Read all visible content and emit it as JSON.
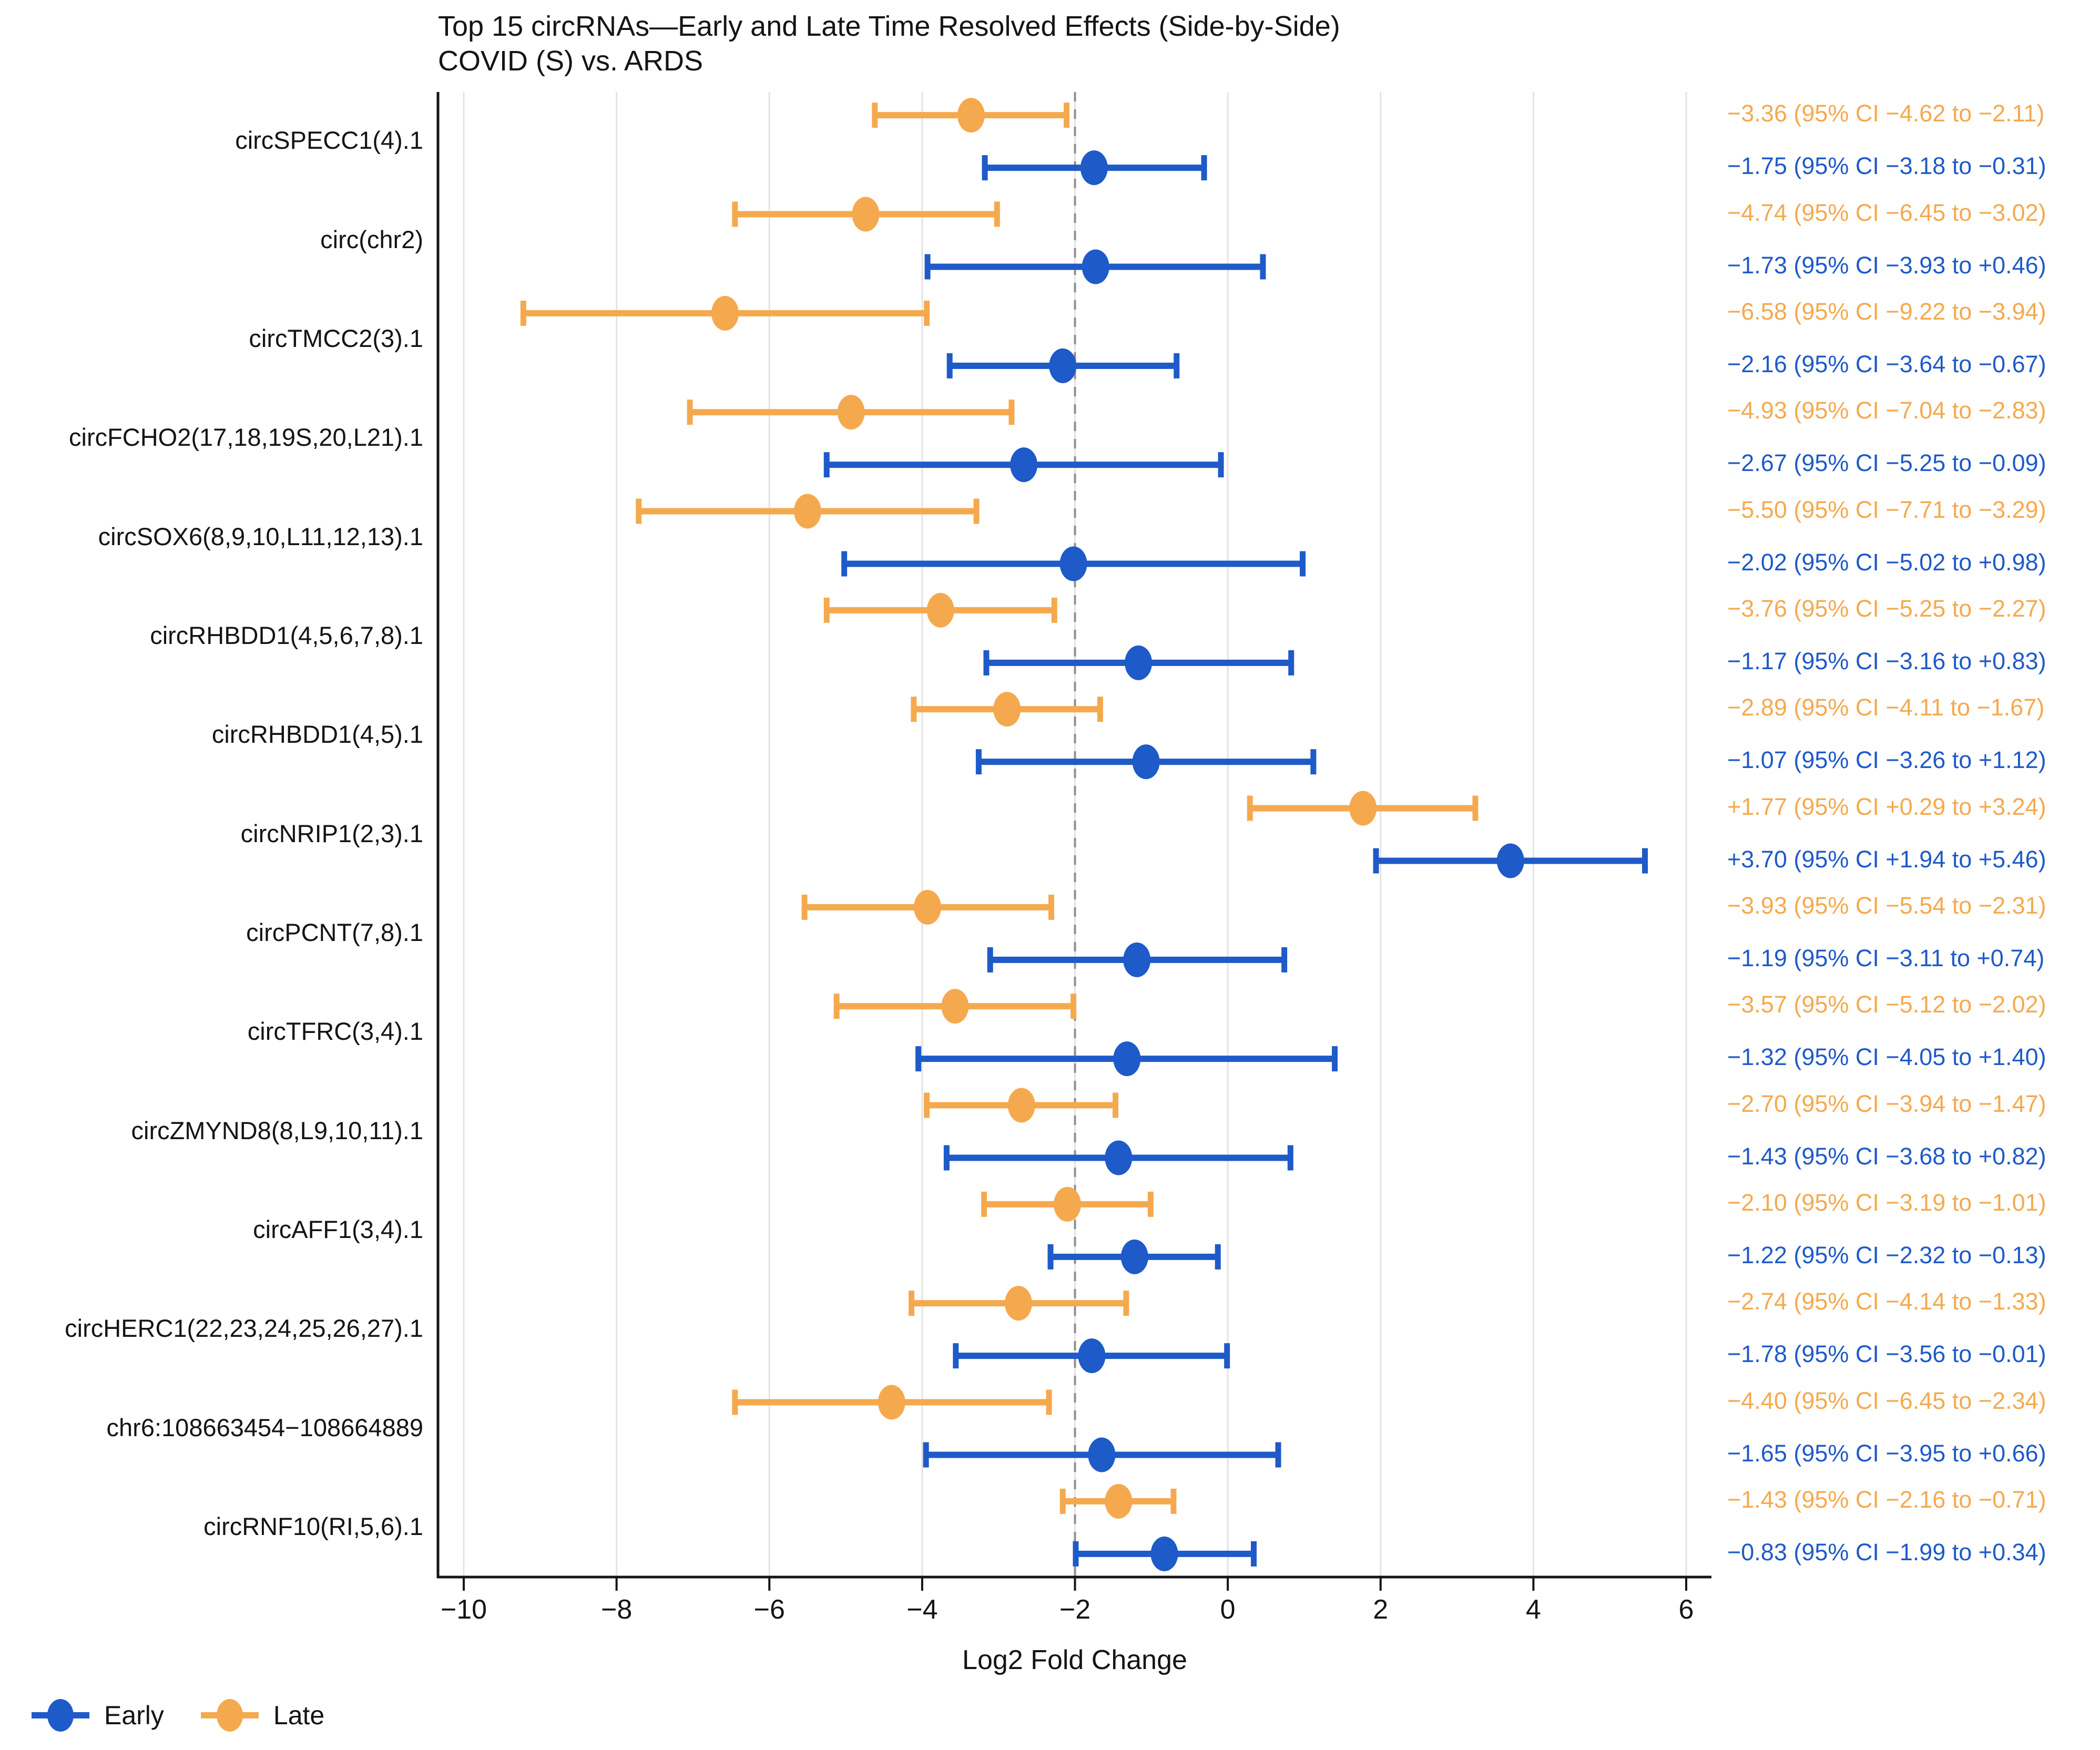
{
  "chart_data": {
    "type": "scatter",
    "variant": "forest-plot-side-by-side-ci",
    "title": "Top 15 circRNAs—Early and Late Time Resolved Effects (Side-by-Side)",
    "subtitle": "COVID (S) vs. ARDS",
    "xlabel": "Log2 Fold Change",
    "xticks": [
      -10,
      -8,
      -6,
      -4,
      -2,
      0,
      2,
      4,
      6
    ],
    "xtick_labels": [
      "−10",
      "−8",
      "−6",
      "−4",
      "−2",
      "0",
      "2",
      "4",
      "6"
    ],
    "xlim": [
      -10.35,
      6.35
    ],
    "reference_x": -2,
    "grid": true,
    "legend_position": "bottom-left",
    "categories": [
      "circSPECC1(4).1",
      "circ(chr2)",
      "circTMCC2(3).1",
      "circFCHO2(17,18,19S,20,L21).1",
      "circSOX6(8,9,10,L11,12,13).1",
      "circRHBDD1(4,5,6,7,8).1",
      "circRHBDD1(4,5).1",
      "circNRIP1(2,3).1",
      "circPCNT(7,8).1",
      "circTFRC(3,4).1",
      "circZMYND8(8,L9,10,11).1",
      "circAFF1(3,4).1",
      "circHERC1(22,23,24,25,26,27).1",
      "chr6:108663454−108664889",
      "circRNF10(RI,5,6).1"
    ],
    "series": [
      {
        "name": "Late",
        "color": "#F5A94E",
        "est": [
          -3.36,
          -4.74,
          -6.58,
          -4.93,
          -5.5,
          -3.76,
          -2.89,
          1.77,
          -3.93,
          -3.57,
          -2.7,
          -2.1,
          -2.74,
          -4.4,
          -1.43
        ],
        "lo": [
          -4.62,
          -6.45,
          -9.22,
          -7.04,
          -7.71,
          -5.25,
          -4.11,
          0.29,
          -5.54,
          -5.12,
          -3.94,
          -3.19,
          -4.14,
          -6.45,
          -2.16
        ],
        "hi": [
          -2.11,
          -3.02,
          -3.94,
          -2.83,
          -3.29,
          -2.27,
          -1.67,
          3.24,
          -2.31,
          -2.02,
          -1.47,
          -1.01,
          -1.33,
          -2.34,
          -0.71
        ],
        "labels": [
          "−3.36 (95% CI −4.62 to −2.11)",
          "−4.74 (95% CI −6.45 to −3.02)",
          "−6.58 (95% CI −9.22 to −3.94)",
          "−4.93 (95% CI −7.04 to −2.83)",
          "−5.50 (95% CI −7.71 to −3.29)",
          "−3.76 (95% CI −5.25 to −2.27)",
          "−2.89 (95% CI −4.11 to −1.67)",
          "+1.77 (95% CI +0.29 to +3.24)",
          "−3.93 (95% CI −5.54 to −2.31)",
          "−3.57 (95% CI −5.12 to −2.02)",
          "−2.70 (95% CI −3.94 to −1.47)",
          "−2.10 (95% CI −3.19 to −1.01)",
          "−2.74 (95% CI −4.14 to −1.33)",
          "−4.40 (95% CI −6.45 to −2.34)",
          "−1.43 (95% CI −2.16 to −0.71)"
        ]
      },
      {
        "name": "Early",
        "color": "#1E5AC8",
        "est": [
          -1.75,
          -1.73,
          -2.16,
          -2.67,
          -2.02,
          -1.17,
          -1.07,
          3.7,
          -1.19,
          -1.32,
          -1.43,
          -1.22,
          -1.78,
          -1.65,
          -0.83
        ],
        "lo": [
          -3.18,
          -3.93,
          -3.64,
          -5.25,
          -5.02,
          -3.16,
          -3.26,
          1.94,
          -3.11,
          -4.05,
          -3.68,
          -2.32,
          -3.56,
          -3.95,
          -1.99
        ],
        "hi": [
          -0.31,
          0.46,
          -0.67,
          -0.09,
          0.98,
          0.83,
          1.12,
          5.46,
          0.74,
          1.4,
          0.82,
          -0.13,
          -0.01,
          0.66,
          0.34
        ],
        "labels": [
          "−1.75 (95% CI −3.18 to −0.31)",
          "−1.73 (95% CI −3.93 to +0.46)",
          "−2.16 (95% CI −3.64 to −0.67)",
          "−2.67 (95% CI −5.25 to −0.09)",
          "−2.02 (95% CI −5.02 to +0.98)",
          "−1.17 (95% CI −3.16 to +0.83)",
          "−1.07 (95% CI −3.26 to +1.12)",
          "+3.70 (95% CI +1.94 to +5.46)",
          "−1.19 (95% CI −3.11 to +0.74)",
          "−1.32 (95% CI −4.05 to +1.40)",
          "−1.43 (95% CI −3.68 to +0.82)",
          "−1.22 (95% CI −2.32 to −0.13)",
          "−1.78 (95% CI −3.56 to −0.01)",
          "−1.65 (95% CI −3.95 to +0.66)",
          "−0.83 (95% CI −1.99 to +0.34)"
        ]
      }
    ]
  },
  "colors": {
    "early": "#1E5AC8",
    "late": "#F5A94E",
    "axis": "#141414",
    "gridline": "#e3e3e3",
    "reference_line": "#8f8f8f"
  }
}
